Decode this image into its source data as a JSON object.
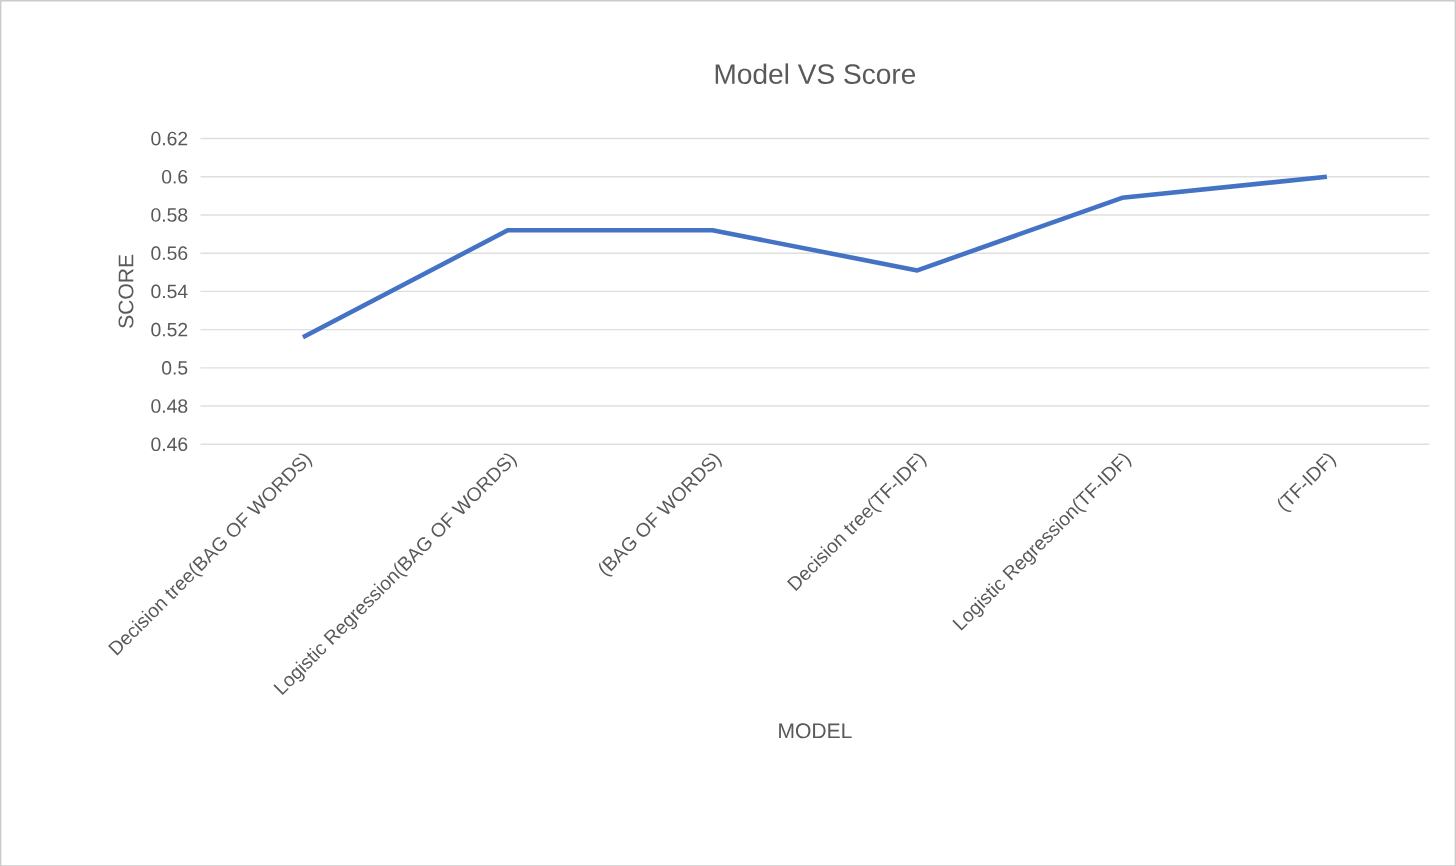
{
  "chart_data": {
    "type": "line",
    "title": "Model VS Score",
    "xlabel": "MODEL",
    "ylabel": "SCORE",
    "categories": [
      "Decision tree(BAG OF WORDS)",
      "Logistic Regression(BAG OF WORDS)",
      "(BAG OF WORDS)",
      "Decision tree(TF-IDF)",
      "Logistic Regression(TF-IDF)",
      "(TF-IDF)"
    ],
    "values": [
      0.516,
      0.572,
      0.572,
      0.551,
      0.589,
      0.6
    ],
    "color": "#4472c4",
    "ylim": [
      0.46,
      0.62
    ],
    "yticks": [
      0.46,
      0.48,
      0.5,
      0.52,
      0.54,
      0.56,
      0.58,
      0.6,
      0.62
    ],
    "grid": "y",
    "marker": "none",
    "line_style": "solid"
  }
}
